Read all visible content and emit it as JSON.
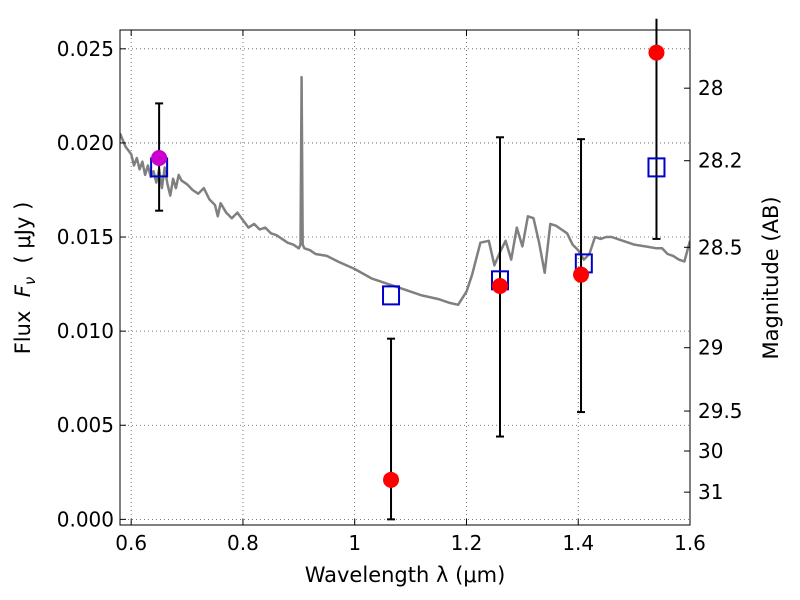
{
  "chart_data": {
    "type": "scatter",
    "xlabel": "Wavelength  λ (μm)",
    "ylabel": "Flux  F_ν  ( μJy )",
    "ylabel_parts": {
      "prefix": "Flux  ",
      "symbol": "F",
      "subscript": "ν",
      "suffix": "  ( μJy )"
    },
    "y2label": "Magnitude (AB)",
    "xlim": [
      0.58,
      1.6
    ],
    "ylim": [
      -0.0003,
      0.026
    ],
    "grid": true,
    "x_ticks": [
      0.6,
      0.8,
      1.0,
      1.2,
      1.4,
      1.6
    ],
    "x_tick_labels": [
      "0.6",
      "0.8",
      "1",
      "1.2",
      "1.4",
      "1.6"
    ],
    "y_ticks": [
      0.0,
      0.005,
      0.01,
      0.015,
      0.02,
      0.025
    ],
    "y_tick_labels": [
      "0.000",
      "0.005",
      "0.010",
      "0.015",
      "0.020",
      "0.025"
    ],
    "y2_ticks": [
      28,
      28.2,
      28.5,
      29,
      29.5,
      30,
      31
    ],
    "y2_tick_labels": [
      "28",
      "28.2",
      "28.5",
      "29",
      "29.5",
      "30",
      "31"
    ],
    "colors": {
      "model": "#808080",
      "observed": "#ff0000",
      "synthetic": "#0000cc",
      "highlight": "#cc00cc",
      "errorbar": "#000000",
      "grid": "#555555"
    },
    "series": [
      {
        "name": "model spectrum",
        "kind": "line",
        "x": [
          0.58,
          0.59,
          0.6,
          0.605,
          0.61,
          0.615,
          0.62,
          0.625,
          0.63,
          0.635,
          0.64,
          0.645,
          0.65,
          0.655,
          0.66,
          0.665,
          0.67,
          0.675,
          0.68,
          0.685,
          0.69,
          0.7,
          0.71,
          0.72,
          0.73,
          0.74,
          0.75,
          0.755,
          0.76,
          0.77,
          0.78,
          0.79,
          0.8,
          0.81,
          0.82,
          0.83,
          0.84,
          0.85,
          0.86,
          0.87,
          0.88,
          0.89,
          0.9,
          0.903,
          0.905,
          0.907,
          0.91,
          0.92,
          0.93,
          0.95,
          0.97,
          1.0,
          1.03,
          1.06,
          1.09,
          1.12,
          1.15,
          1.17,
          1.185,
          1.2,
          1.21,
          1.225,
          1.24,
          1.25,
          1.26,
          1.27,
          1.28,
          1.29,
          1.3,
          1.31,
          1.32,
          1.33,
          1.34,
          1.35,
          1.36,
          1.37,
          1.38,
          1.39,
          1.4,
          1.41,
          1.42,
          1.43,
          1.44,
          1.45,
          1.46,
          1.47,
          1.48,
          1.49,
          1.5,
          1.52,
          1.54,
          1.55,
          1.56,
          1.57,
          1.58,
          1.59,
          1.6
        ],
        "y": [
          0.0205,
          0.0198,
          0.0194,
          0.0188,
          0.0192,
          0.0186,
          0.019,
          0.0183,
          0.0188,
          0.0182,
          0.0185,
          0.0179,
          0.0186,
          0.0176,
          0.0187,
          0.0178,
          0.0172,
          0.0181,
          0.0176,
          0.0183,
          0.018,
          0.0178,
          0.0175,
          0.0173,
          0.0176,
          0.017,
          0.0167,
          0.0161,
          0.0168,
          0.0163,
          0.016,
          0.0163,
          0.0159,
          0.0155,
          0.0157,
          0.0154,
          0.0155,
          0.0152,
          0.0151,
          0.0149,
          0.0147,
          0.0146,
          0.0144,
          0.0146,
          0.0235,
          0.0146,
          0.0144,
          0.0143,
          0.0141,
          0.014,
          0.0137,
          0.0133,
          0.0128,
          0.0125,
          0.0122,
          0.0119,
          0.0117,
          0.0115,
          0.0114,
          0.0121,
          0.013,
          0.0147,
          0.0148,
          0.0135,
          0.0142,
          0.0148,
          0.0138,
          0.0155,
          0.0145,
          0.0161,
          0.016,
          0.0147,
          0.0131,
          0.0157,
          0.0156,
          0.0154,
          0.0152,
          0.0146,
          0.0143,
          0.0138,
          0.0141,
          0.015,
          0.0149,
          0.015,
          0.015,
          0.0149,
          0.0148,
          0.0147,
          0.0146,
          0.0145,
          0.0144,
          0.0144,
          0.0141,
          0.014,
          0.0138,
          0.0137,
          0.0148
        ]
      },
      {
        "name": "synthetic photometry",
        "kind": "open-square",
        "x": [
          0.65,
          1.065,
          1.26,
          1.41,
          1.54
        ],
        "y": [
          0.0187,
          0.0119,
          0.0127,
          0.0136,
          0.0187
        ]
      },
      {
        "name": "observed photometry",
        "kind": "filled-circle",
        "x": [
          1.065,
          1.26,
          1.405,
          1.54
        ],
        "y": [
          0.0021,
          0.0124,
          0.013,
          0.0248
        ],
        "err_low": [
          0.0021,
          0.008,
          0.0073,
          0.0099
        ],
        "err_high": [
          0.0075,
          0.0079,
          0.0072,
          0.0018
        ]
      },
      {
        "name": "highlighted photometry",
        "kind": "filled-circle",
        "x": [
          0.65
        ],
        "y": [
          0.0192
        ],
        "err_low": [
          0.0028
        ],
        "err_high": [
          0.0029
        ]
      }
    ]
  }
}
